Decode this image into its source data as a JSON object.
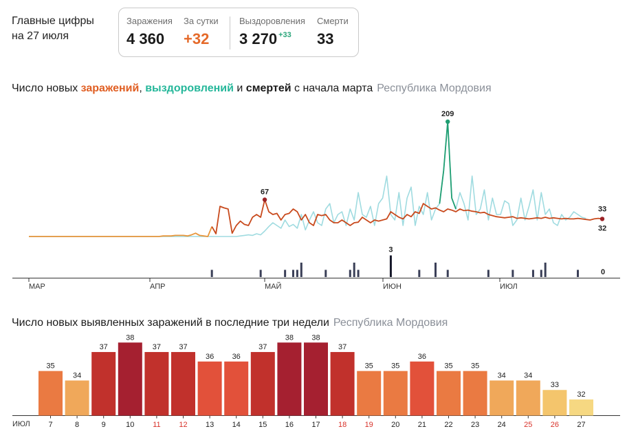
{
  "header": {
    "title": "Главные цифры на 27 июля",
    "stats": {
      "infections_label": "Заражения",
      "infections_value": "4 360",
      "daily_label": "За сутки",
      "daily_value": "+32",
      "recoveries_label": "Выздоровления",
      "recoveries_value": "3 270",
      "recoveries_delta": "+33",
      "deaths_label": "Смерти",
      "deaths_value": "33"
    }
  },
  "line_section": {
    "title_prefix": "Число новых ",
    "title_infections": "заражений",
    "title_sep": ", ",
    "title_recoveries": "выздоровлений",
    "title_and": " и ",
    "title_deaths": "смертей",
    "title_suffix": " с начала марта",
    "region": "Республика Мордовия"
  },
  "bar_section": {
    "title": "Число новых выявленных заражений в последние три недели",
    "region": "Республика Мордовия",
    "month_label": "ИЮЛ"
  },
  "colors": {
    "infections": "#c8491c",
    "infections_early": "#e8953a",
    "recoveries": "#9fdbe0",
    "recoveries_peak": "#1f9e72",
    "deaths": "#3a3f57",
    "deaths_peak": "#16182a",
    "weekend_tick": "#d8322a",
    "peak_marker": "#9b2226"
  },
  "chart_data": [
    {
      "type": "line",
      "x_ticks": [
        "МАР",
        "АПР",
        "МАЙ",
        "ИЮН",
        "ИЮЛ"
      ],
      "x_range": [
        "01.03",
        "27.07"
      ],
      "series": [
        {
          "name": "заражений",
          "values": [
            0,
            0,
            0,
            0,
            0,
            0,
            0,
            0,
            0,
            0,
            0,
            0,
            0,
            0,
            0,
            0,
            0,
            0,
            0,
            0,
            0,
            0,
            0,
            0,
            0,
            0,
            0,
            0,
            0,
            0,
            0,
            0,
            0,
            1,
            1,
            1,
            2,
            2,
            2,
            1,
            3,
            6,
            2,
            1,
            0,
            18,
            5,
            55,
            52,
            50,
            6,
            20,
            28,
            22,
            20,
            35,
            40,
            35,
            67,
            45,
            40,
            42,
            30,
            40,
            42,
            50,
            45,
            30,
            40,
            25,
            20,
            40,
            38,
            40,
            30,
            25,
            25,
            30,
            25,
            20,
            25,
            26,
            35,
            30,
            25,
            30,
            28,
            30,
            32,
            45,
            40,
            35,
            32,
            40,
            36,
            45,
            42,
            60,
            55,
            50,
            52,
            48,
            45,
            50,
            48,
            45,
            50,
            47,
            48,
            46,
            45,
            43,
            44,
            40,
            38,
            36,
            35,
            34,
            35,
            36,
            33,
            34,
            33,
            32,
            33,
            34,
            33,
            35,
            33,
            34,
            33,
            32,
            33,
            32,
            32,
            33,
            32,
            31,
            30,
            32,
            33,
            32
          ],
          "labeled_point": {
            "date": "29.04",
            "value": 67
          },
          "last_value": 32
        },
        {
          "name": "выздоровлений",
          "values": [
            0,
            0,
            0,
            0,
            0,
            0,
            0,
            0,
            0,
            0,
            0,
            0,
            0,
            0,
            0,
            0,
            0,
            0,
            0,
            0,
            0,
            0,
            0,
            0,
            0,
            0,
            0,
            0,
            0,
            0,
            0,
            0,
            0,
            0,
            0,
            0,
            0,
            0,
            0,
            0,
            0,
            0,
            0,
            0,
            0,
            0,
            0,
            0,
            0,
            0,
            0,
            0,
            1,
            2,
            3,
            2,
            5,
            3,
            10,
            18,
            25,
            20,
            15,
            30,
            18,
            22,
            15,
            40,
            12,
            30,
            45,
            25,
            20,
            50,
            60,
            25,
            40,
            45,
            20,
            50,
            30,
            80,
            40,
            35,
            55,
            20,
            60,
            70,
            110,
            40,
            30,
            80,
            20,
            70,
            90,
            20,
            55,
            40,
            80,
            30,
            50,
            60,
            120,
            209,
            70,
            50,
            80,
            60,
            30,
            110,
            40,
            50,
            85,
            30,
            70,
            40,
            40,
            65,
            60,
            20,
            30,
            70,
            30,
            55,
            85,
            30,
            80,
            40,
            50,
            25,
            20,
            40,
            30,
            35,
            45,
            40,
            35,
            33
          ],
          "labeled_point": {
            "date": "15.06",
            "value": 209
          },
          "last_value": 33
        },
        {
          "name": "смертей",
          "values": [
            0,
            0,
            0,
            0,
            0,
            0,
            0,
            0,
            0,
            0,
            0,
            0,
            0,
            0,
            0,
            0,
            0,
            0,
            0,
            0,
            0,
            0,
            0,
            0,
            0,
            0,
            0,
            0,
            0,
            0,
            0,
            0,
            0,
            0,
            0,
            0,
            0,
            0,
            0,
            0,
            0,
            0,
            0,
            0,
            0,
            1,
            0,
            0,
            0,
            0,
            0,
            0,
            0,
            0,
            0,
            0,
            0,
            1,
            0,
            0,
            0,
            0,
            0,
            1,
            0,
            1,
            1,
            2,
            0,
            0,
            0,
            0,
            0,
            1,
            0,
            0,
            0,
            0,
            0,
            1,
            2,
            1,
            0,
            0,
            0,
            0,
            0,
            0,
            0,
            3,
            0,
            0,
            0,
            0,
            0,
            0,
            1,
            0,
            0,
            0,
            2,
            0,
            0,
            1,
            0,
            0,
            0,
            0,
            0,
            0,
            0,
            0,
            0,
            1,
            0,
            0,
            0,
            0,
            0,
            1,
            0,
            0,
            0,
            0,
            1,
            0,
            1,
            2,
            0,
            0,
            0,
            0,
            0,
            0,
            0,
            1,
            0
          ],
          "labeled_point": {
            "date": "02.06",
            "value": 3
          },
          "last_value": 0
        }
      ]
    },
    {
      "type": "bar",
      "categories": [
        "7",
        "8",
        "9",
        "10",
        "11",
        "12",
        "13",
        "14",
        "15",
        "16",
        "17",
        "18",
        "19",
        "20",
        "21",
        "22",
        "23",
        "24",
        "25",
        "26",
        "27"
      ],
      "values": [
        35,
        34,
        37,
        38,
        37,
        37,
        36,
        36,
        37,
        38,
        38,
        37,
        35,
        35,
        36,
        35,
        35,
        34,
        34,
        33,
        32
      ],
      "weekend_days": [
        "11",
        "12",
        "18",
        "19",
        "25",
        "26"
      ],
      "colors": [
        "#ea7a42",
        "#f0a85a",
        "#c1312c",
        "#a52030",
        "#c1312c",
        "#c1312c",
        "#e2513a",
        "#e2513a",
        "#c1312c",
        "#a52030",
        "#a52030",
        "#c1312c",
        "#ea7a42",
        "#ea7a42",
        "#e2513a",
        "#ea7a42",
        "#ea7a42",
        "#f0a85a",
        "#f0a85a",
        "#f4c56c",
        "#f6d882"
      ]
    }
  ]
}
